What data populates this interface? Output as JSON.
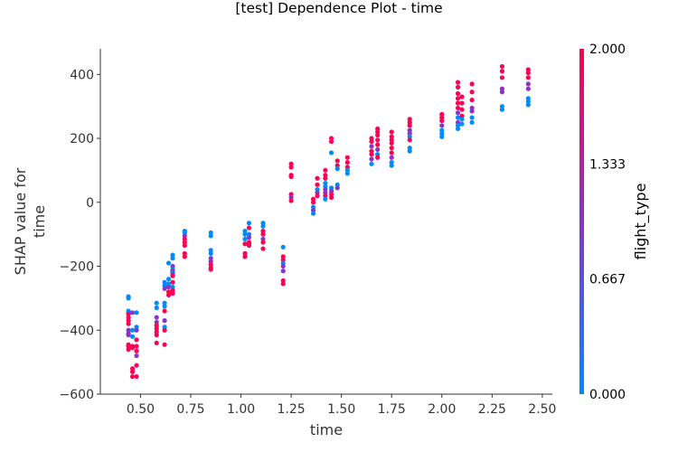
{
  "chart_data": {
    "type": "scatter",
    "title": "[test] Dependence Plot - time",
    "xlabel": "time",
    "ylabel_lines": [
      "SHAP value for",
      "time"
    ],
    "xlim": [
      0.3,
      2.55
    ],
    "ylim": [
      -600,
      480
    ],
    "xticks": [
      0.5,
      0.75,
      1.0,
      1.25,
      1.5,
      1.75,
      2.0,
      2.25,
      2.5
    ],
    "xtick_labels": [
      "0.50",
      "0.75",
      "1.00",
      "1.25",
      "1.50",
      "1.75",
      "2.00",
      "2.25",
      "2.50"
    ],
    "yticks": [
      400,
      200,
      0,
      -200,
      -400,
      -600
    ],
    "ytick_labels": [
      "400",
      "200",
      "0",
      "−200",
      "−400",
      "−600"
    ],
    "grid": false,
    "colorbar": {
      "label": "flight_type",
      "ticks": [
        2.0,
        1.333,
        0.667,
        0.0
      ],
      "tick_labels": [
        "2.000",
        "1.333",
        "0.667",
        "0.000"
      ],
      "colors": [
        "#008bfb",
        "#8a33c8",
        "#ff0052"
      ]
    },
    "points": [
      [
        0.44,
        -295,
        0
      ],
      [
        0.44,
        -300,
        0
      ],
      [
        0.44,
        -340,
        0
      ],
      [
        0.44,
        -345,
        0
      ],
      [
        0.44,
        -350,
        2
      ],
      [
        0.44,
        -360,
        2
      ],
      [
        0.44,
        -370,
        2
      ],
      [
        0.44,
        -380,
        2
      ],
      [
        0.44,
        -400,
        1
      ],
      [
        0.44,
        -410,
        1
      ],
      [
        0.44,
        -415,
        1
      ],
      [
        0.44,
        -445,
        2
      ],
      [
        0.44,
        -450,
        2
      ],
      [
        0.44,
        -460,
        2
      ],
      [
        0.46,
        -345,
        1
      ],
      [
        0.46,
        -400,
        0
      ],
      [
        0.46,
        -420,
        0
      ],
      [
        0.46,
        -450,
        2
      ],
      [
        0.46,
        -455,
        2
      ],
      [
        0.46,
        -520,
        2
      ],
      [
        0.46,
        -530,
        2
      ],
      [
        0.46,
        -545,
        2
      ],
      [
        0.48,
        -345,
        0
      ],
      [
        0.48,
        -390,
        0
      ],
      [
        0.48,
        -400,
        1
      ],
      [
        0.48,
        -430,
        2
      ],
      [
        0.48,
        -450,
        2
      ],
      [
        0.48,
        -465,
        2
      ],
      [
        0.48,
        -480,
        1
      ],
      [
        0.48,
        -510,
        2
      ],
      [
        0.48,
        -545,
        2
      ],
      [
        0.58,
        -315,
        0
      ],
      [
        0.58,
        -330,
        0
      ],
      [
        0.58,
        -360,
        1
      ],
      [
        0.58,
        -375,
        1
      ],
      [
        0.58,
        -385,
        2
      ],
      [
        0.58,
        -395,
        2
      ],
      [
        0.58,
        -405,
        2
      ],
      [
        0.58,
        -415,
        2
      ],
      [
        0.58,
        -440,
        2
      ],
      [
        0.62,
        -250,
        0
      ],
      [
        0.62,
        -260,
        0
      ],
      [
        0.62,
        -270,
        1
      ],
      [
        0.62,
        -315,
        0
      ],
      [
        0.62,
        -325,
        0
      ],
      [
        0.62,
        -340,
        2
      ],
      [
        0.62,
        -370,
        1
      ],
      [
        0.62,
        -390,
        0
      ],
      [
        0.62,
        -400,
        2
      ],
      [
        0.62,
        -445,
        2
      ],
      [
        0.64,
        -190,
        0
      ],
      [
        0.64,
        -240,
        0
      ],
      [
        0.64,
        -255,
        0
      ],
      [
        0.64,
        -265,
        1
      ],
      [
        0.64,
        -280,
        2
      ],
      [
        0.64,
        -290,
        2
      ],
      [
        0.66,
        -165,
        0
      ],
      [
        0.66,
        -175,
        0
      ],
      [
        0.66,
        -200,
        1
      ],
      [
        0.66,
        -210,
        0
      ],
      [
        0.66,
        -215,
        1
      ],
      [
        0.66,
        -220,
        0
      ],
      [
        0.66,
        -225,
        1
      ],
      [
        0.66,
        -230,
        2
      ],
      [
        0.66,
        -250,
        2
      ],
      [
        0.66,
        -265,
        0
      ],
      [
        0.66,
        -275,
        2
      ],
      [
        0.66,
        -285,
        2
      ],
      [
        0.72,
        -90,
        0
      ],
      [
        0.72,
        -95,
        0
      ],
      [
        0.72,
        -105,
        1
      ],
      [
        0.72,
        -115,
        2
      ],
      [
        0.72,
        -125,
        2
      ],
      [
        0.72,
        -135,
        2
      ],
      [
        0.72,
        -160,
        2
      ],
      [
        0.72,
        -170,
        2
      ],
      [
        0.85,
        -95,
        0
      ],
      [
        0.85,
        -105,
        0
      ],
      [
        0.85,
        -150,
        0
      ],
      [
        0.85,
        -160,
        0
      ],
      [
        0.85,
        -175,
        1
      ],
      [
        0.85,
        -185,
        1
      ],
      [
        0.85,
        -195,
        2
      ],
      [
        0.85,
        -205,
        2
      ],
      [
        0.85,
        -210,
        2
      ],
      [
        1.02,
        -90,
        0
      ],
      [
        1.02,
        -100,
        0
      ],
      [
        1.02,
        -115,
        0
      ],
      [
        1.02,
        -130,
        2
      ],
      [
        1.02,
        -160,
        2
      ],
      [
        1.02,
        -170,
        2
      ],
      [
        1.04,
        -65,
        0
      ],
      [
        1.04,
        -80,
        2
      ],
      [
        1.04,
        -100,
        0
      ],
      [
        1.04,
        -110,
        1
      ],
      [
        1.04,
        -125,
        2
      ],
      [
        1.04,
        -130,
        2
      ],
      [
        1.04,
        -135,
        2
      ],
      [
        1.11,
        -65,
        0
      ],
      [
        1.11,
        -75,
        0
      ],
      [
        1.11,
        -90,
        2
      ],
      [
        1.11,
        -100,
        2
      ],
      [
        1.11,
        -115,
        1
      ],
      [
        1.11,
        -125,
        2
      ],
      [
        1.11,
        -145,
        2
      ],
      [
        1.21,
        -140,
        0
      ],
      [
        1.21,
        -170,
        2
      ],
      [
        1.21,
        -180,
        2
      ],
      [
        1.21,
        -190,
        0
      ],
      [
        1.21,
        -200,
        1
      ],
      [
        1.21,
        -215,
        1
      ],
      [
        1.21,
        -245,
        2
      ],
      [
        1.21,
        -255,
        2
      ],
      [
        1.25,
        120,
        2
      ],
      [
        1.25,
        110,
        2
      ],
      [
        1.25,
        85,
        2
      ],
      [
        1.25,
        80,
        2
      ],
      [
        1.25,
        25,
        2
      ],
      [
        1.25,
        15,
        1
      ],
      [
        1.25,
        5,
        2
      ],
      [
        1.36,
        10,
        2
      ],
      [
        1.36,
        0,
        2
      ],
      [
        1.36,
        -15,
        0
      ],
      [
        1.36,
        -25,
        1
      ],
      [
        1.36,
        -35,
        0
      ],
      [
        1.38,
        75,
        2
      ],
      [
        1.38,
        55,
        2
      ],
      [
        1.38,
        40,
        0
      ],
      [
        1.38,
        30,
        1
      ],
      [
        1.38,
        20,
        2
      ],
      [
        1.42,
        100,
        2
      ],
      [
        1.42,
        85,
        2
      ],
      [
        1.42,
        75,
        2
      ],
      [
        1.42,
        60,
        0
      ],
      [
        1.42,
        50,
        0
      ],
      [
        1.42,
        40,
        1
      ],
      [
        1.42,
        30,
        1
      ],
      [
        1.42,
        20,
        2
      ],
      [
        1.42,
        10,
        0
      ],
      [
        1.45,
        200,
        2
      ],
      [
        1.45,
        190,
        2
      ],
      [
        1.45,
        155,
        0
      ],
      [
        1.45,
        45,
        0
      ],
      [
        1.45,
        35,
        1
      ],
      [
        1.45,
        25,
        2
      ],
      [
        1.45,
        15,
        2
      ],
      [
        1.48,
        130,
        2
      ],
      [
        1.48,
        115,
        2
      ],
      [
        1.48,
        105,
        0
      ],
      [
        1.48,
        55,
        0
      ],
      [
        1.48,
        45,
        1
      ],
      [
        1.53,
        140,
        2
      ],
      [
        1.53,
        125,
        2
      ],
      [
        1.53,
        110,
        2
      ],
      [
        1.53,
        100,
        0
      ],
      [
        1.53,
        90,
        0
      ],
      [
        1.65,
        200,
        2
      ],
      [
        1.65,
        190,
        2
      ],
      [
        1.65,
        175,
        1
      ],
      [
        1.65,
        160,
        2
      ],
      [
        1.65,
        150,
        2
      ],
      [
        1.65,
        135,
        1
      ],
      [
        1.65,
        120,
        0
      ],
      [
        1.68,
        230,
        2
      ],
      [
        1.68,
        220,
        2
      ],
      [
        1.68,
        210,
        2
      ],
      [
        1.68,
        195,
        2
      ],
      [
        1.68,
        180,
        2
      ],
      [
        1.68,
        165,
        1
      ],
      [
        1.68,
        150,
        0
      ],
      [
        1.68,
        140,
        2
      ],
      [
        1.75,
        220,
        2
      ],
      [
        1.75,
        205,
        2
      ],
      [
        1.75,
        195,
        2
      ],
      [
        1.75,
        185,
        2
      ],
      [
        1.75,
        170,
        2
      ],
      [
        1.75,
        155,
        2
      ],
      [
        1.75,
        140,
        1
      ],
      [
        1.75,
        125,
        0
      ],
      [
        1.75,
        115,
        0
      ],
      [
        1.84,
        260,
        2
      ],
      [
        1.84,
        250,
        2
      ],
      [
        1.84,
        240,
        2
      ],
      [
        1.84,
        225,
        1
      ],
      [
        1.84,
        215,
        1
      ],
      [
        1.84,
        205,
        0
      ],
      [
        1.84,
        195,
        2
      ],
      [
        1.84,
        170,
        0
      ],
      [
        1.84,
        160,
        0
      ],
      [
        2.0,
        275,
        2
      ],
      [
        2.0,
        265,
        2
      ],
      [
        2.0,
        255,
        2
      ],
      [
        2.0,
        240,
        1
      ],
      [
        2.0,
        225,
        0
      ],
      [
        2.0,
        215,
        0
      ],
      [
        2.0,
        205,
        0
      ],
      [
        2.08,
        375,
        2
      ],
      [
        2.08,
        360,
        2
      ],
      [
        2.08,
        340,
        2
      ],
      [
        2.08,
        325,
        2
      ],
      [
        2.08,
        310,
        2
      ],
      [
        2.08,
        295,
        2
      ],
      [
        2.08,
        280,
        1
      ],
      [
        2.08,
        265,
        0
      ],
      [
        2.08,
        250,
        1
      ],
      [
        2.08,
        240,
        0
      ],
      [
        2.08,
        230,
        0
      ],
      [
        2.1,
        330,
        2
      ],
      [
        2.1,
        310,
        2
      ],
      [
        2.1,
        290,
        2
      ],
      [
        2.1,
        270,
        2
      ],
      [
        2.1,
        260,
        0
      ],
      [
        2.1,
        245,
        0
      ],
      [
        2.15,
        370,
        2
      ],
      [
        2.15,
        345,
        2
      ],
      [
        2.15,
        320,
        2
      ],
      [
        2.15,
        295,
        1
      ],
      [
        2.15,
        285,
        1
      ],
      [
        2.15,
        265,
        0
      ],
      [
        2.15,
        250,
        0
      ],
      [
        2.3,
        425,
        2
      ],
      [
        2.3,
        410,
        2
      ],
      [
        2.3,
        390,
        2
      ],
      [
        2.3,
        355,
        1
      ],
      [
        2.3,
        345,
        1
      ],
      [
        2.3,
        300,
        0
      ],
      [
        2.3,
        290,
        0
      ],
      [
        2.43,
        415,
        2
      ],
      [
        2.43,
        405,
        2
      ],
      [
        2.43,
        390,
        2
      ],
      [
        2.43,
        370,
        1
      ],
      [
        2.43,
        355,
        1
      ],
      [
        2.43,
        325,
        0
      ],
      [
        2.43,
        315,
        0
      ],
      [
        2.43,
        305,
        0
      ]
    ]
  }
}
